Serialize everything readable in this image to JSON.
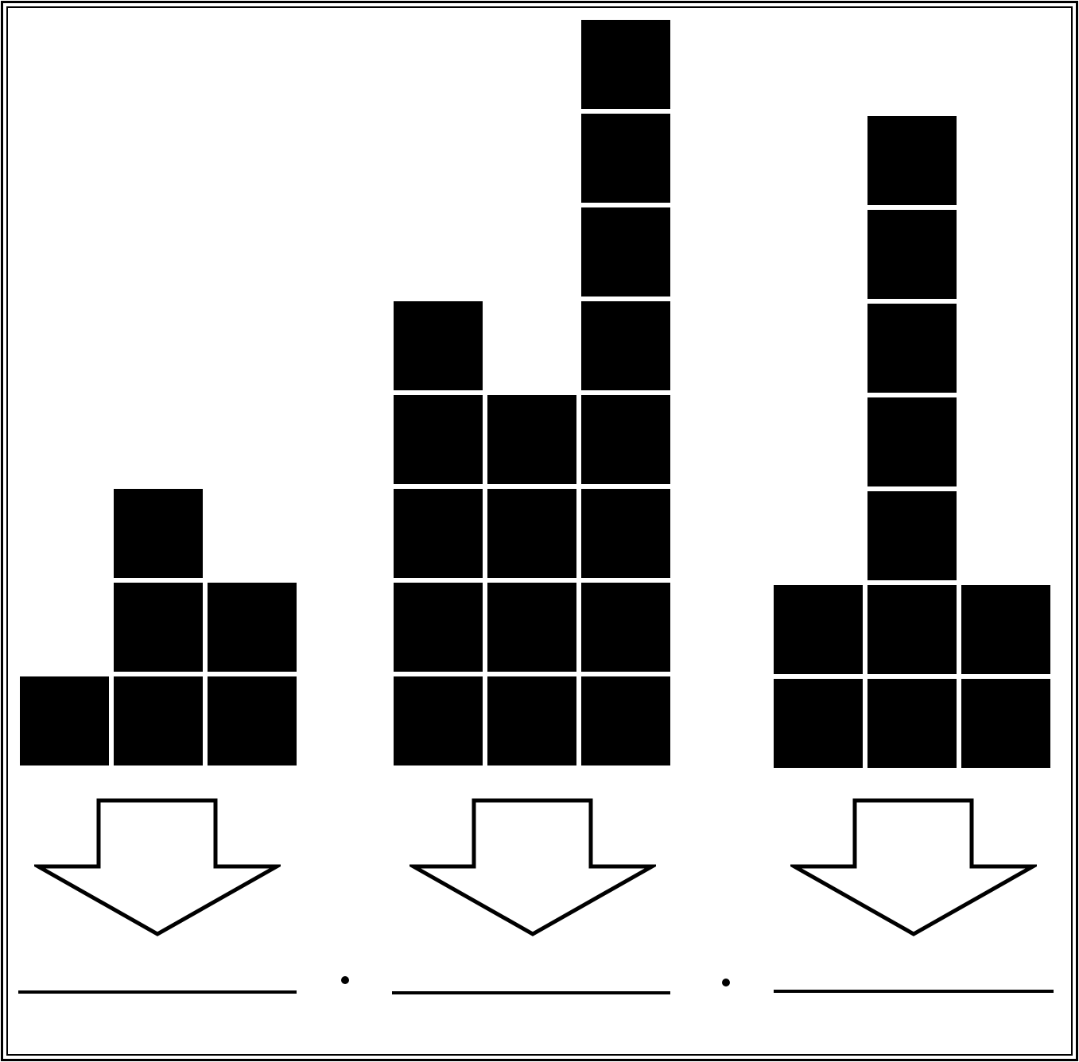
{
  "groups": [
    {
      "name": "group-1",
      "column_heights": [
        1,
        3,
        2
      ],
      "total_blocks": 6
    },
    {
      "name": "group-2",
      "column_heights": [
        5,
        4,
        8
      ],
      "total_blocks": 17
    },
    {
      "name": "group-3",
      "column_heights": [
        2,
        7,
        2
      ],
      "total_blocks": 11
    }
  ],
  "answer_blanks": [
    "",
    "",
    ""
  ],
  "separator_symbol": "ratio-dot",
  "colors": {
    "block": "#000000",
    "background": "#ffffff",
    "outline": "#000000"
  }
}
